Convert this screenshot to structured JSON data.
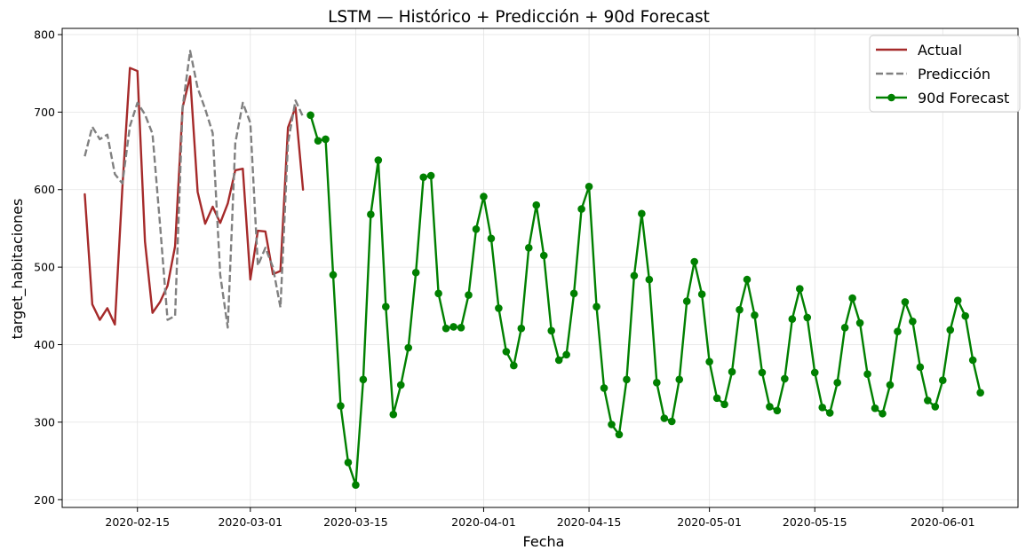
{
  "chart_data": {
    "type": "line",
    "title": "LSTM — Histórico + Predicción + 90d Forecast",
    "xlabel": "Fecha",
    "ylabel": "target_habitaciones",
    "xlim": [
      "2020-02-05",
      "2020-06-11"
    ],
    "ylim": [
      190,
      808
    ],
    "x_ticks": [
      "2020-02-15",
      "2020-03-01",
      "2020-03-15",
      "2020-04-01",
      "2020-04-15",
      "2020-05-01",
      "2020-05-15",
      "2020-06-01"
    ],
    "y_ticks": [
      200,
      300,
      400,
      500,
      600,
      700,
      800
    ],
    "grid": true,
    "legend_position": "top-right",
    "series": [
      {
        "name": "Actual",
        "color": "#a52a2a",
        "style": "solid",
        "marker": "none",
        "start": "2020-02-08",
        "values": [
          594,
          452,
          432,
          447,
          426,
          603,
          757,
          753,
          533,
          441,
          455,
          476,
          527,
          706,
          746,
          597,
          556,
          578,
          557,
          582,
          625,
          627,
          484,
          547,
          546,
          491,
          495,
          680,
          706,
          600
        ]
      },
      {
        "name": "Predicción",
        "color": "#808080",
        "style": "dashed",
        "marker": "none",
        "start": "2020-02-08",
        "values": [
          643,
          681,
          665,
          671,
          620,
          608,
          682,
          712,
          697,
          672,
          555,
          432,
          437,
          706,
          779,
          731,
          704,
          673,
          490,
          422,
          660,
          712,
          686,
          502,
          525,
          500,
          448,
          660,
          715,
          694
        ]
      },
      {
        "name": "90d Forecast",
        "color": "#008000",
        "style": "solid",
        "marker": "circle",
        "start": "2020-03-09",
        "values": [
          696,
          663,
          665,
          490,
          321,
          248,
          219,
          355,
          568,
          638,
          449,
          310,
          348,
          396,
          493,
          616,
          618,
          466,
          421,
          423,
          422,
          464,
          549,
          591,
          537,
          447,
          391,
          373,
          421,
          525,
          580,
          515,
          418,
          380,
          387,
          466,
          575,
          604,
          449,
          344,
          297,
          284,
          355,
          489,
          569,
          484,
          351,
          305,
          301,
          355,
          456,
          507,
          465,
          378,
          331,
          323,
          365,
          445,
          484,
          438,
          364,
          320,
          315,
          356,
          433,
          472,
          435,
          364,
          319,
          312,
          351,
          422,
          460,
          428,
          362,
          318,
          311,
          348,
          417,
          455,
          430,
          371,
          328,
          320,
          354,
          419,
          457,
          437,
          380,
          338
        ]
      }
    ]
  }
}
